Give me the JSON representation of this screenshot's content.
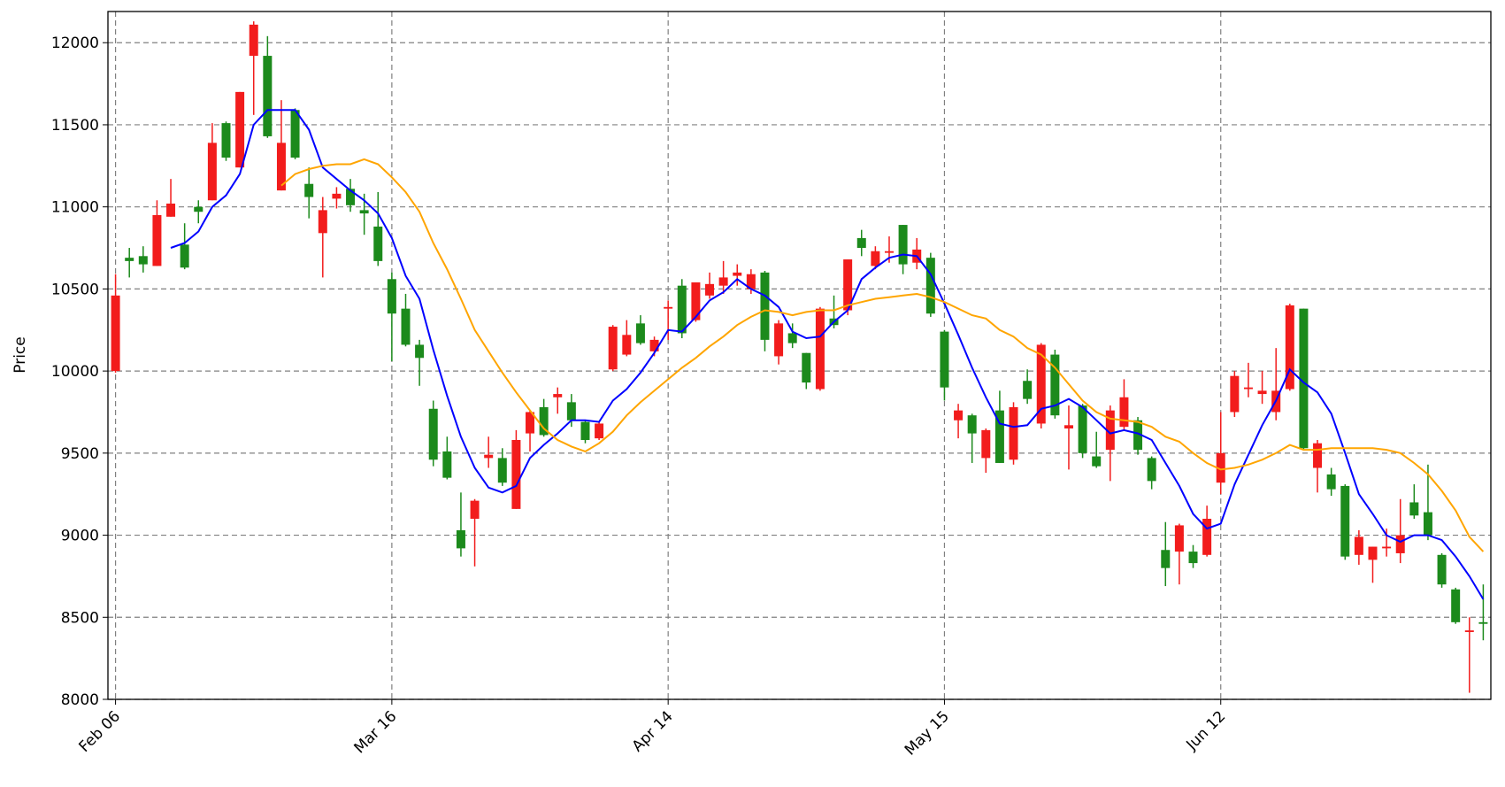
{
  "chart_data": {
    "type": "candlestick",
    "ylabel": "Price",
    "categories": [
      "Feb 06",
      null,
      null,
      null,
      null,
      null,
      null,
      null,
      null,
      null,
      null,
      null,
      null,
      null,
      null,
      null,
      null,
      null,
      null,
      null,
      "Mar 16",
      null,
      null,
      null,
      null,
      null,
      null,
      null,
      null,
      null,
      null,
      null,
      null,
      null,
      null,
      null,
      null,
      null,
      null,
      null,
      "Apr 14",
      null,
      null,
      null,
      null,
      null,
      null,
      null,
      null,
      null,
      null,
      null,
      null,
      null,
      null,
      null,
      null,
      null,
      null,
      null,
      "May 15",
      null,
      null,
      null,
      null,
      null,
      null,
      null,
      null,
      null,
      null,
      null,
      null,
      null,
      null,
      null,
      null,
      null,
      null,
      null,
      "Jun 12",
      null,
      null,
      null,
      null,
      null,
      null,
      null,
      null,
      null,
      null,
      null,
      null,
      null,
      null,
      null,
      null,
      null,
      null,
      null
    ],
    "open": [
      10000,
      10690,
      10700,
      10640,
      10940,
      10770,
      11000,
      11040,
      11510,
      11240,
      11920,
      11920,
      11100,
      11590,
      11140,
      10840,
      11050,
      11110,
      10980,
      10880,
      10560,
      10380,
      10160,
      9770,
      9510,
      9030,
      9100,
      9470,
      9470,
      9160,
      9620,
      9780,
      9840,
      9810,
      9690,
      9590,
      10010,
      10100,
      10290,
      10120,
      10380,
      10520,
      10310,
      10460,
      10520,
      10580,
      10500,
      10600,
      10090,
      10230,
      10110,
      9890,
      10320,
      10370,
      10810,
      10640,
      10720,
      10890,
      10660,
      10690,
      10240,
      9700,
      9730,
      9470,
      9760,
      9460,
      9940,
      9680,
      10100,
      9650,
      9790,
      9480,
      9520,
      9660,
      9700,
      9470,
      8910,
      8900,
      8900,
      8880,
      9320,
      9750,
      9890,
      9860,
      9750,
      9890,
      10380,
      9410,
      9370,
      9300,
      8880,
      8850,
      8920,
      8890,
      9200,
      9140,
      8880,
      8670,
      8410,
      8470
    ],
    "high": [
      10590,
      10750,
      10760,
      11040,
      11170,
      10900,
      11040,
      11510,
      11520,
      11700,
      12130,
      12040,
      11650,
      11600,
      11240,
      11060,
      11120,
      11170,
      11080,
      11090,
      10600,
      10470,
      10190,
      9820,
      9600,
      9260,
      9220,
      9600,
      9530,
      9640,
      9760,
      9830,
      9900,
      9860,
      9700,
      9690,
      10280,
      10310,
      10340,
      10210,
      10430,
      10560,
      10540,
      10600,
      10670,
      10650,
      10620,
      10610,
      10310,
      10290,
      10110,
      10390,
      10460,
      10680,
      10860,
      10760,
      10820,
      10890,
      10810,
      10720,
      10250,
      9800,
      9740,
      9650,
      9880,
      9810,
      10010,
      10170,
      10130,
      9790,
      9800,
      9630,
      9790,
      9950,
      9720,
      9480,
      9080,
      9070,
      8940,
      9180,
      9750,
      10000,
      10050,
      10000,
      10140,
      10410,
      10380,
      9580,
      9410,
      9310,
      9030,
      8930,
      9040,
      9220,
      9310,
      9430,
      8890,
      8680,
      8500,
      8700
    ],
    "low": [
      9990,
      10570,
      10600,
      10640,
      10940,
      10620,
      10900,
      11040,
      11280,
      11240,
      11560,
      11420,
      11100,
      11290,
      10930,
      10570,
      10990,
      10970,
      10830,
      10640,
      10060,
      10150,
      9910,
      9420,
      9340,
      8870,
      8810,
      9410,
      9300,
      9160,
      9510,
      9600,
      9740,
      9660,
      9560,
      9580,
      10000,
      10090,
      10160,
      10090,
      10190,
      10200,
      10300,
      10440,
      10470,
      10520,
      10470,
      10120,
      10040,
      10140,
      9890,
      9880,
      10260,
      10340,
      10700,
      10620,
      10660,
      10590,
      10620,
      10330,
      9820,
      9590,
      9440,
      9380,
      9440,
      9430,
      9800,
      9650,
      9710,
      9400,
      9470,
      9410,
      9330,
      9640,
      9490,
      9280,
      8690,
      8700,
      8800,
      8870,
      9250,
      9720,
      9840,
      9800,
      9700,
      9880,
      9520,
      9260,
      9240,
      8850,
      8820,
      8710,
      8870,
      8830,
      9100,
      8970,
      8680,
      8460,
      8040,
      8360
    ],
    "close": [
      10460,
      10670,
      10650,
      10950,
      11020,
      10630,
      10970,
      11390,
      11300,
      11700,
      12110,
      11430,
      11390,
      11300,
      11060,
      10980,
      11080,
      11010,
      10960,
      10670,
      10350,
      10160,
      10080,
      9460,
      9350,
      8920,
      9210,
      9490,
      9320,
      9580,
      9750,
      9610,
      9860,
      9700,
      9580,
      9680,
      10270,
      10220,
      10170,
      10190,
      10390,
      10230,
      10540,
      10530,
      10570,
      10600,
      10590,
      10190,
      10290,
      10170,
      9930,
      10380,
      10280,
      10680,
      10750,
      10730,
      10730,
      10650,
      10740,
      10350,
      9900,
      9760,
      9620,
      9640,
      9440,
      9780,
      9830,
      10160,
      9730,
      9670,
      9500,
      9420,
      9760,
      9840,
      9520,
      9330,
      8800,
      9060,
      8830,
      9100,
      9500,
      9970,
      9900,
      9880,
      9880,
      10400,
      9530,
      9560,
      9280,
      8870,
      8990,
      8930,
      8930,
      9000,
      9120,
      9000,
      8700,
      8470,
      8420,
      8460
    ],
    "up_color": "#f21c1c",
    "down_color": "#1c8a1c",
    "series": [
      {
        "color": "#0000ff",
        "values": [
          null,
          null,
          null,
          null,
          10750,
          10780,
          10850,
          11000,
          11070,
          11200,
          11500,
          11590,
          11590,
          11590,
          11470,
          11240,
          11170,
          11100,
          11040,
          10960,
          10810,
          10580,
          10440,
          10130,
          9850,
          9600,
          9410,
          9290,
          9260,
          9300,
          9470,
          9550,
          9620,
          9700,
          9700,
          9690,
          9820,
          9890,
          9990,
          10110,
          10250,
          10240,
          10330,
          10430,
          10480,
          10560,
          10500,
          10460,
          10390,
          10240,
          10200,
          10210,
          10300,
          10370,
          10560,
          10630,
          10690,
          10710,
          10700,
          10590,
          10410,
          10220,
          10020,
          9840,
          9680,
          9660,
          9670,
          9770,
          9790,
          9830,
          9780,
          9700,
          9620,
          9640,
          9620,
          9580,
          9440,
          9300,
          9130,
          9040,
          9070,
          9310,
          9490,
          9670,
          9820,
          10010,
          9930,
          9870,
          9740,
          9500,
          9250,
          9130,
          9000,
          8960,
          9000,
          9000,
          8970,
          8870,
          8750,
          8610
        ]
      },
      {
        "color": "#ffa500",
        "values": [
          null,
          null,
          null,
          null,
          null,
          null,
          null,
          null,
          null,
          null,
          null,
          null,
          11130,
          11200,
          11230,
          11250,
          11260,
          11260,
          11290,
          11260,
          11180,
          11090,
          10970,
          10780,
          10620,
          10440,
          10250,
          10120,
          9990,
          9870,
          9760,
          9650,
          9580,
          9540,
          9510,
          9560,
          9630,
          9730,
          9810,
          9880,
          9950,
          10020,
          10080,
          10150,
          10210,
          10280,
          10330,
          10370,
          10360,
          10340,
          10360,
          10370,
          10370,
          10400,
          10420,
          10440,
          10450,
          10460,
          10470,
          10450,
          10420,
          10380,
          10340,
          10320,
          10250,
          10210,
          10140,
          10100,
          10020,
          9920,
          9820,
          9750,
          9710,
          9700,
          9690,
          9660,
          9600,
          9570,
          9500,
          9440,
          9400,
          9410,
          9430,
          9460,
          9500,
          9550,
          9520,
          9520,
          9530,
          9530,
          9530,
          9530,
          9520,
          9500,
          9440,
          9370,
          9270,
          9150,
          8990,
          8900
        ]
      }
    ],
    "ylim": [
      8000,
      12190
    ],
    "yticks": [
      8000,
      8500,
      9000,
      9500,
      10000,
      10500,
      11000,
      11500,
      12000
    ],
    "grid": true
  }
}
